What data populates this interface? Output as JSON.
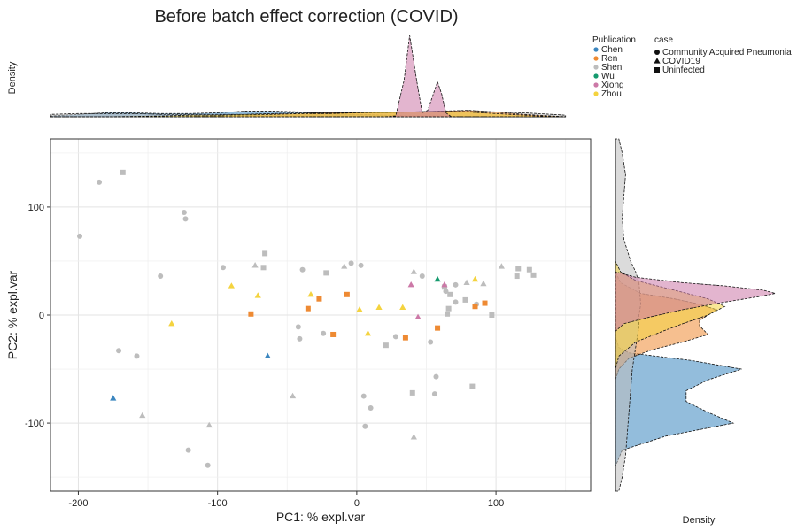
{
  "chart_data": {
    "type": "scatter",
    "title": "Before batch effect correction (COVID)",
    "xlabel": "PC1: % expl.var",
    "ylabel": "PC2: % expl.var",
    "top_density_ylabel": "Density",
    "right_density_xlabel": "Density",
    "xlim": [
      -220,
      168
    ],
    "ylim": [
      -163,
      163
    ],
    "x_ticks": [
      -200,
      -100,
      0,
      100
    ],
    "y_ticks": [
      100,
      0,
      -100
    ],
    "grid": true,
    "legend_position": "top-right",
    "legend": {
      "publication_title": "Publication",
      "publication": [
        {
          "name": "Chen",
          "color": "#3b86bf"
        },
        {
          "name": "Ren",
          "color": "#ee8a33"
        },
        {
          "name": "Shen",
          "color": "#bdbdbd"
        },
        {
          "name": "Wu",
          "color": "#159a6e"
        },
        {
          "name": "Xiong",
          "color": "#cc79a7"
        },
        {
          "name": "Zhou",
          "color": "#f4d33f"
        }
      ],
      "case_title": "case",
      "case": [
        {
          "name": "Community Acquired Pneumonia",
          "shape": "circle"
        },
        {
          "name": "COVID19",
          "shape": "triangle"
        },
        {
          "name": "Uninfected",
          "shape": "square"
        }
      ]
    },
    "points": [
      {
        "x": -199,
        "y": 73,
        "pub": "Shen",
        "case": "circle"
      },
      {
        "x": -185,
        "y": 123,
        "pub": "Shen",
        "case": "circle"
      },
      {
        "x": -168,
        "y": 132,
        "pub": "Shen",
        "case": "square"
      },
      {
        "x": -124,
        "y": 95,
        "pub": "Shen",
        "case": "circle"
      },
      {
        "x": -123,
        "y": 89,
        "pub": "Shen",
        "case": "circle"
      },
      {
        "x": -141,
        "y": 36,
        "pub": "Shen",
        "case": "circle"
      },
      {
        "x": -96,
        "y": 44,
        "pub": "Shen",
        "case": "circle"
      },
      {
        "x": -73,
        "y": 46,
        "pub": "Shen",
        "case": "triangle"
      },
      {
        "x": -67,
        "y": 44,
        "pub": "Shen",
        "case": "square"
      },
      {
        "x": -66,
        "y": 57,
        "pub": "Shen",
        "case": "square"
      },
      {
        "x": -171,
        "y": -33,
        "pub": "Shen",
        "case": "circle"
      },
      {
        "x": -158,
        "y": -38,
        "pub": "Shen",
        "case": "circle"
      },
      {
        "x": -154,
        "y": -93,
        "pub": "Shen",
        "case": "triangle"
      },
      {
        "x": -106,
        "y": -102,
        "pub": "Shen",
        "case": "triangle"
      },
      {
        "x": -121,
        "y": -125,
        "pub": "Shen",
        "case": "circle"
      },
      {
        "x": -107,
        "y": -139,
        "pub": "Shen",
        "case": "circle"
      },
      {
        "x": -46,
        "y": -75,
        "pub": "Shen",
        "case": "triangle"
      },
      {
        "x": -39,
        "y": 42,
        "pub": "Shen",
        "case": "circle"
      },
      {
        "x": -22,
        "y": 39,
        "pub": "Shen",
        "case": "square"
      },
      {
        "x": -9,
        "y": 45,
        "pub": "Shen",
        "case": "triangle"
      },
      {
        "x": -4,
        "y": 48,
        "pub": "Shen",
        "case": "circle"
      },
      {
        "x": 3,
        "y": 46,
        "pub": "Shen",
        "case": "circle"
      },
      {
        "x": -42,
        "y": -11,
        "pub": "Shen",
        "case": "circle"
      },
      {
        "x": -41,
        "y": -22,
        "pub": "Shen",
        "case": "circle"
      },
      {
        "x": -24,
        "y": -17,
        "pub": "Shen",
        "case": "circle"
      },
      {
        "x": 21,
        "y": -28,
        "pub": "Shen",
        "case": "square"
      },
      {
        "x": 28,
        "y": -20,
        "pub": "Shen",
        "case": "circle"
      },
      {
        "x": 5,
        "y": -75,
        "pub": "Shen",
        "case": "circle"
      },
      {
        "x": 10,
        "y": -86,
        "pub": "Shen",
        "case": "circle"
      },
      {
        "x": 6,
        "y": -103,
        "pub": "Shen",
        "case": "circle"
      },
      {
        "x": 40,
        "y": -72,
        "pub": "Shen",
        "case": "square"
      },
      {
        "x": 41,
        "y": -113,
        "pub": "Shen",
        "case": "triangle"
      },
      {
        "x": 57,
        "y": -57,
        "pub": "Shen",
        "case": "circle"
      },
      {
        "x": 56,
        "y": -73,
        "pub": "Shen",
        "case": "circle"
      },
      {
        "x": 83,
        "y": -66,
        "pub": "Shen",
        "case": "square"
      },
      {
        "x": 41,
        "y": 40,
        "pub": "Shen",
        "case": "triangle"
      },
      {
        "x": 47,
        "y": 36,
        "pub": "Shen",
        "case": "circle"
      },
      {
        "x": 53,
        "y": -25,
        "pub": "Shen",
        "case": "circle"
      },
      {
        "x": 63,
        "y": 26,
        "pub": "Shen",
        "case": "square"
      },
      {
        "x": 71,
        "y": 28,
        "pub": "Shen",
        "case": "circle"
      },
      {
        "x": 79,
        "y": 30,
        "pub": "Shen",
        "case": "triangle"
      },
      {
        "x": 64,
        "y": 22,
        "pub": "Shen",
        "case": "circle"
      },
      {
        "x": 67,
        "y": 19,
        "pub": "Shen",
        "case": "square"
      },
      {
        "x": 71,
        "y": 12,
        "pub": "Shen",
        "case": "circle"
      },
      {
        "x": 78,
        "y": 14,
        "pub": "Shen",
        "case": "square"
      },
      {
        "x": 66,
        "y": 6,
        "pub": "Shen",
        "case": "square"
      },
      {
        "x": 65,
        "y": 1,
        "pub": "Shen",
        "case": "square"
      },
      {
        "x": 86,
        "y": 10,
        "pub": "Shen",
        "case": "circle"
      },
      {
        "x": 97,
        "y": 0,
        "pub": "Shen",
        "case": "square"
      },
      {
        "x": 91,
        "y": 29,
        "pub": "Shen",
        "case": "triangle"
      },
      {
        "x": 104,
        "y": 45,
        "pub": "Shen",
        "case": "triangle"
      },
      {
        "x": 115,
        "y": 36,
        "pub": "Shen",
        "case": "square"
      },
      {
        "x": 116,
        "y": 43,
        "pub": "Shen",
        "case": "square"
      },
      {
        "x": 124,
        "y": 42,
        "pub": "Shen",
        "case": "square"
      },
      {
        "x": 127,
        "y": 37,
        "pub": "Shen",
        "case": "square"
      },
      {
        "x": -175,
        "y": -77,
        "pub": "Chen",
        "case": "triangle"
      },
      {
        "x": -64,
        "y": -38,
        "pub": "Chen",
        "case": "triangle"
      },
      {
        "x": -76,
        "y": 1,
        "pub": "Ren",
        "case": "square"
      },
      {
        "x": -35,
        "y": 6,
        "pub": "Ren",
        "case": "square"
      },
      {
        "x": -27,
        "y": 15,
        "pub": "Ren",
        "case": "square"
      },
      {
        "x": -7,
        "y": 19,
        "pub": "Ren",
        "case": "square"
      },
      {
        "x": -17,
        "y": -18,
        "pub": "Ren",
        "case": "square"
      },
      {
        "x": 35,
        "y": -21,
        "pub": "Ren",
        "case": "square"
      },
      {
        "x": 58,
        "y": -12,
        "pub": "Ren",
        "case": "square"
      },
      {
        "x": 85,
        "y": 8,
        "pub": "Ren",
        "case": "square"
      },
      {
        "x": 92,
        "y": 11,
        "pub": "Ren",
        "case": "square"
      },
      {
        "x": 58,
        "y": 33,
        "pub": "Wu",
        "case": "triangle"
      },
      {
        "x": 39,
        "y": 28,
        "pub": "Xiong",
        "case": "triangle"
      },
      {
        "x": 44,
        "y": -2,
        "pub": "Xiong",
        "case": "triangle"
      },
      {
        "x": 63,
        "y": 28,
        "pub": "Xiong",
        "case": "triangle"
      },
      {
        "x": -133,
        "y": -8,
        "pub": "Zhou",
        "case": "triangle"
      },
      {
        "x": -90,
        "y": 27,
        "pub": "Zhou",
        "case": "triangle"
      },
      {
        "x": -71,
        "y": 18,
        "pub": "Zhou",
        "case": "triangle"
      },
      {
        "x": -33,
        "y": 19,
        "pub": "Zhou",
        "case": "triangle"
      },
      {
        "x": 2,
        "y": 5,
        "pub": "Zhou",
        "case": "triangle"
      },
      {
        "x": 8,
        "y": -17,
        "pub": "Zhou",
        "case": "triangle"
      },
      {
        "x": 16,
        "y": 7,
        "pub": "Zhou",
        "case": "triangle"
      },
      {
        "x": 33,
        "y": 7,
        "pub": "Zhou",
        "case": "triangle"
      },
      {
        "x": 85,
        "y": 33,
        "pub": "Zhou",
        "case": "triangle"
      }
    ],
    "top_density": [
      {
        "pub": "Chen",
        "color": "#3b86bf",
        "x": [
          -220,
          -200,
          -180,
          -160,
          -140,
          -120,
          -100,
          -80,
          -60,
          -40,
          -20,
          0,
          20,
          40,
          60,
          80,
          100,
          120,
          150
        ],
        "d": [
          0.01,
          0.03,
          0.05,
          0.05,
          0.04,
          0.04,
          0.05,
          0.07,
          0.07,
          0.06,
          0.04,
          0.03,
          0.02,
          0.01,
          0.01,
          0,
          0,
          0,
          0
        ]
      },
      {
        "pub": "Shen",
        "color": "#bdbdbd",
        "x": [
          -220,
          -200,
          -180,
          -160,
          -140,
          -120,
          -100,
          -80,
          -60,
          -40,
          -20,
          0,
          20,
          40,
          60,
          80,
          100,
          120,
          150
        ],
        "d": [
          0.03,
          0.04,
          0.04,
          0.04,
          0.03,
          0.03,
          0.03,
          0.03,
          0.04,
          0.05,
          0.05,
          0.05,
          0.05,
          0.06,
          0.07,
          0.07,
          0.06,
          0.05,
          0.02
        ]
      },
      {
        "pub": "Ren",
        "color": "#ee8a33",
        "x": [
          -220,
          -180,
          -140,
          -100,
          -80,
          -60,
          -40,
          -20,
          0,
          20,
          40,
          60,
          80,
          100,
          120,
          150
        ],
        "d": [
          0,
          0,
          0,
          0.01,
          0.02,
          0.03,
          0.04,
          0.05,
          0.05,
          0.05,
          0.06,
          0.07,
          0.08,
          0.06,
          0.03,
          0
        ]
      },
      {
        "pub": "Zhou",
        "color": "#f4d33f",
        "x": [
          -220,
          -180,
          -140,
          -120,
          -100,
          -80,
          -60,
          -40,
          -20,
          0,
          20,
          40,
          60,
          80,
          100,
          130,
          150
        ],
        "d": [
          0,
          0,
          0.01,
          0.02,
          0.02,
          0.03,
          0.03,
          0.04,
          0.04,
          0.05,
          0.06,
          0.06,
          0.06,
          0.06,
          0.04,
          0.01,
          0
        ]
      },
      {
        "pub": "Xiong",
        "color": "#cc79a7",
        "x": [
          -220,
          20,
          28,
          34,
          38,
          43,
          47,
          51,
          55,
          58,
          61,
          64,
          68,
          150
        ],
        "d": [
          0,
          0,
          0.01,
          0.45,
          1.0,
          0.45,
          0.05,
          0.08,
          0.28,
          0.43,
          0.28,
          0.05,
          0,
          0
        ]
      }
    ],
    "right_density": [
      {
        "pub": "Chen",
        "color": "#3b86bf",
        "y": [
          -163,
          -150,
          -140,
          -125,
          -112,
          -100,
          -90,
          -80,
          -70,
          -60,
          -50,
          -42,
          -35,
          -30,
          -20,
          -10,
          0,
          15,
          40,
          163
        ],
        "d": [
          0,
          0,
          0,
          0.04,
          0.3,
          0.7,
          0.55,
          0.42,
          0.42,
          0.55,
          0.75,
          0.45,
          0.08,
          0.02,
          0,
          0,
          0,
          0,
          0,
          0
        ]
      },
      {
        "pub": "Ren",
        "color": "#ee8a33",
        "y": [
          -163,
          -60,
          -50,
          -40,
          -32,
          -25,
          -18,
          -10,
          -5,
          0,
          5,
          10,
          15,
          20,
          30,
          40,
          163
        ],
        "d": [
          0,
          0,
          0.02,
          0.08,
          0.22,
          0.4,
          0.55,
          0.5,
          0.5,
          0.55,
          0.6,
          0.5,
          0.35,
          0.15,
          0.03,
          0,
          0
        ]
      },
      {
        "pub": "Shen",
        "color": "#bdbdbd",
        "y": [
          -163,
          -150,
          -130,
          -110,
          -90,
          -70,
          -50,
          -30,
          -10,
          0,
          10,
          30,
          40,
          50,
          70,
          90,
          110,
          130,
          150,
          163
        ],
        "d": [
          0.02,
          0.04,
          0.06,
          0.07,
          0.08,
          0.09,
          0.1,
          0.12,
          0.14,
          0.14,
          0.15,
          0.14,
          0.12,
          0.09,
          0.05,
          0.04,
          0.05,
          0.06,
          0.04,
          0.02
        ]
      },
      {
        "pub": "Zhou",
        "color": "#f4d33f",
        "y": [
          -163,
          -50,
          -38,
          -25,
          -15,
          -8,
          0,
          8,
          15,
          25,
          32,
          40,
          50,
          163
        ],
        "d": [
          0,
          0,
          0.02,
          0.12,
          0.28,
          0.4,
          0.55,
          0.65,
          0.55,
          0.3,
          0.12,
          0.03,
          0,
          0
        ]
      },
      {
        "pub": "Xiong",
        "color": "#cc79a7",
        "y": [
          -163,
          -15,
          -8,
          -2,
          5,
          12,
          17,
          20,
          23,
          27,
          30,
          35,
          40,
          163
        ],
        "d": [
          0,
          0,
          0.05,
          0.2,
          0.4,
          0.65,
          0.85,
          0.95,
          0.88,
          0.65,
          0.4,
          0.12,
          0,
          0
        ]
      }
    ]
  }
}
